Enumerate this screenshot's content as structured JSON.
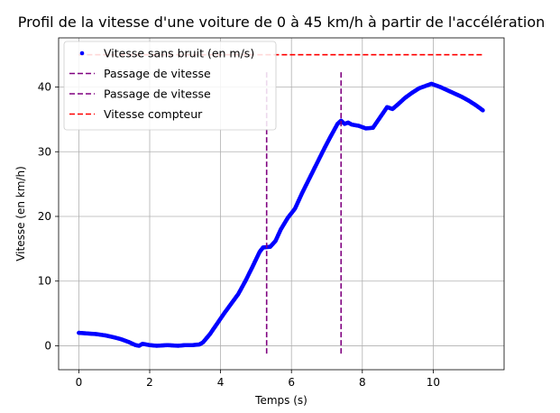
{
  "chart_data": {
    "type": "line",
    "title": "Profil de la vitesse d'une voiture de 0 à 45 km/h à partir de l'accélération",
    "xlabel": "Temps (s)",
    "ylabel": "Vitesse (en km/h)",
    "xlim": [
      -0.57,
      12.0
    ],
    "ylim": [
      -3.7,
      47.6
    ],
    "xticks": [
      0,
      2,
      4,
      6,
      8,
      10
    ],
    "yticks": [
      0,
      10,
      20,
      30,
      40
    ],
    "grid": true,
    "legend_position": "top-left",
    "series": [
      {
        "name": "Vitesse sans bruit (en m/s)",
        "style": "points",
        "color": "#0000ff",
        "points": [
          [
            0,
            2.0
          ],
          [
            0.25,
            1.9
          ],
          [
            0.5,
            1.8
          ],
          [
            0.75,
            1.6
          ],
          [
            1.0,
            1.3
          ],
          [
            1.2,
            1.0
          ],
          [
            1.4,
            0.6
          ],
          [
            1.6,
            0.1
          ],
          [
            1.7,
            0.0
          ],
          [
            1.8,
            0.3
          ],
          [
            2.0,
            0.1
          ],
          [
            2.2,
            0.0
          ],
          [
            2.5,
            0.1
          ],
          [
            2.8,
            0.0
          ],
          [
            3.0,
            0.1
          ],
          [
            3.2,
            0.1
          ],
          [
            3.4,
            0.2
          ],
          [
            3.5,
            0.5
          ],
          [
            3.7,
            1.8
          ],
          [
            3.9,
            3.4
          ],
          [
            4.1,
            5.0
          ],
          [
            4.3,
            6.5
          ],
          [
            4.5,
            8.0
          ],
          [
            4.7,
            10.0
          ],
          [
            4.9,
            12.2
          ],
          [
            5.1,
            14.5
          ],
          [
            5.2,
            15.2
          ],
          [
            5.4,
            15.3
          ],
          [
            5.55,
            16.2
          ],
          [
            5.7,
            18.0
          ],
          [
            5.9,
            19.8
          ],
          [
            6.1,
            21.2
          ],
          [
            6.3,
            23.6
          ],
          [
            6.5,
            25.8
          ],
          [
            6.7,
            28.0
          ],
          [
            6.9,
            30.2
          ],
          [
            7.1,
            32.3
          ],
          [
            7.3,
            34.3
          ],
          [
            7.4,
            34.8
          ],
          [
            7.5,
            34.3
          ],
          [
            7.6,
            34.5
          ],
          [
            7.7,
            34.2
          ],
          [
            7.9,
            34.0
          ],
          [
            8.1,
            33.6
          ],
          [
            8.3,
            33.7
          ],
          [
            8.5,
            35.3
          ],
          [
            8.7,
            36.9
          ],
          [
            8.85,
            36.6
          ],
          [
            9.0,
            37.3
          ],
          [
            9.2,
            38.3
          ],
          [
            9.4,
            39.1
          ],
          [
            9.6,
            39.8
          ],
          [
            9.8,
            40.2
          ],
          [
            9.95,
            40.5
          ],
          [
            10.2,
            40.0
          ],
          [
            10.4,
            39.5
          ],
          [
            10.6,
            39.0
          ],
          [
            10.8,
            38.5
          ],
          [
            11.0,
            37.9
          ],
          [
            11.2,
            37.2
          ],
          [
            11.4,
            36.4
          ]
        ]
      },
      {
        "name": "Passage de vitesse",
        "style": "dashed-vertical",
        "color": "#800080",
        "x": 5.3,
        "y_range": [
          -1.2,
          42.5
        ]
      },
      {
        "name": "Passage de vitesse",
        "style": "dashed-vertical",
        "color": "#800080",
        "x": 7.4,
        "y_range": [
          -1.2,
          42.5
        ]
      },
      {
        "name": "Vitesse compteur",
        "style": "dashed-horizontal",
        "color": "#ff0000",
        "y": 45,
        "x_range": [
          0,
          11.4
        ]
      }
    ]
  }
}
